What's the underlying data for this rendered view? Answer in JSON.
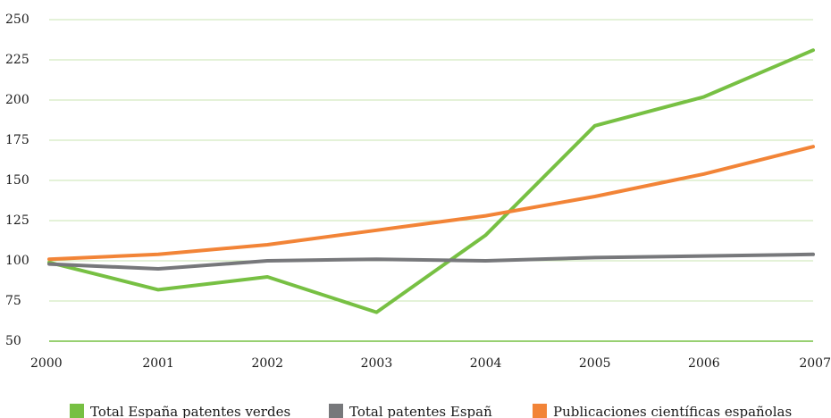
{
  "chart_data": {
    "type": "line",
    "x": [
      "2000",
      "2001",
      "2002",
      "2003",
      "2004",
      "2005",
      "2006",
      "2007"
    ],
    "ylim": [
      50,
      250
    ],
    "yticks": [
      "50",
      "75",
      "100",
      "125",
      "150",
      "175",
      "200",
      "225",
      "250"
    ],
    "grid": true,
    "legend_position": "bottom",
    "series": [
      {
        "name": "Total España patentes verdes",
        "color": "#77c043",
        "values": [
          99,
          82,
          90,
          68,
          116,
          184,
          202,
          231
        ]
      },
      {
        "name": "Total patentes Españ",
        "color": "#77787b",
        "values": [
          98,
          95,
          100,
          101,
          100,
          102,
          103,
          104
        ]
      },
      {
        "name": "Publicaciones científicas españolas",
        "color": "#f28437",
        "values": [
          101,
          104,
          110,
          119,
          128,
          140,
          154,
          171
        ]
      }
    ]
  }
}
